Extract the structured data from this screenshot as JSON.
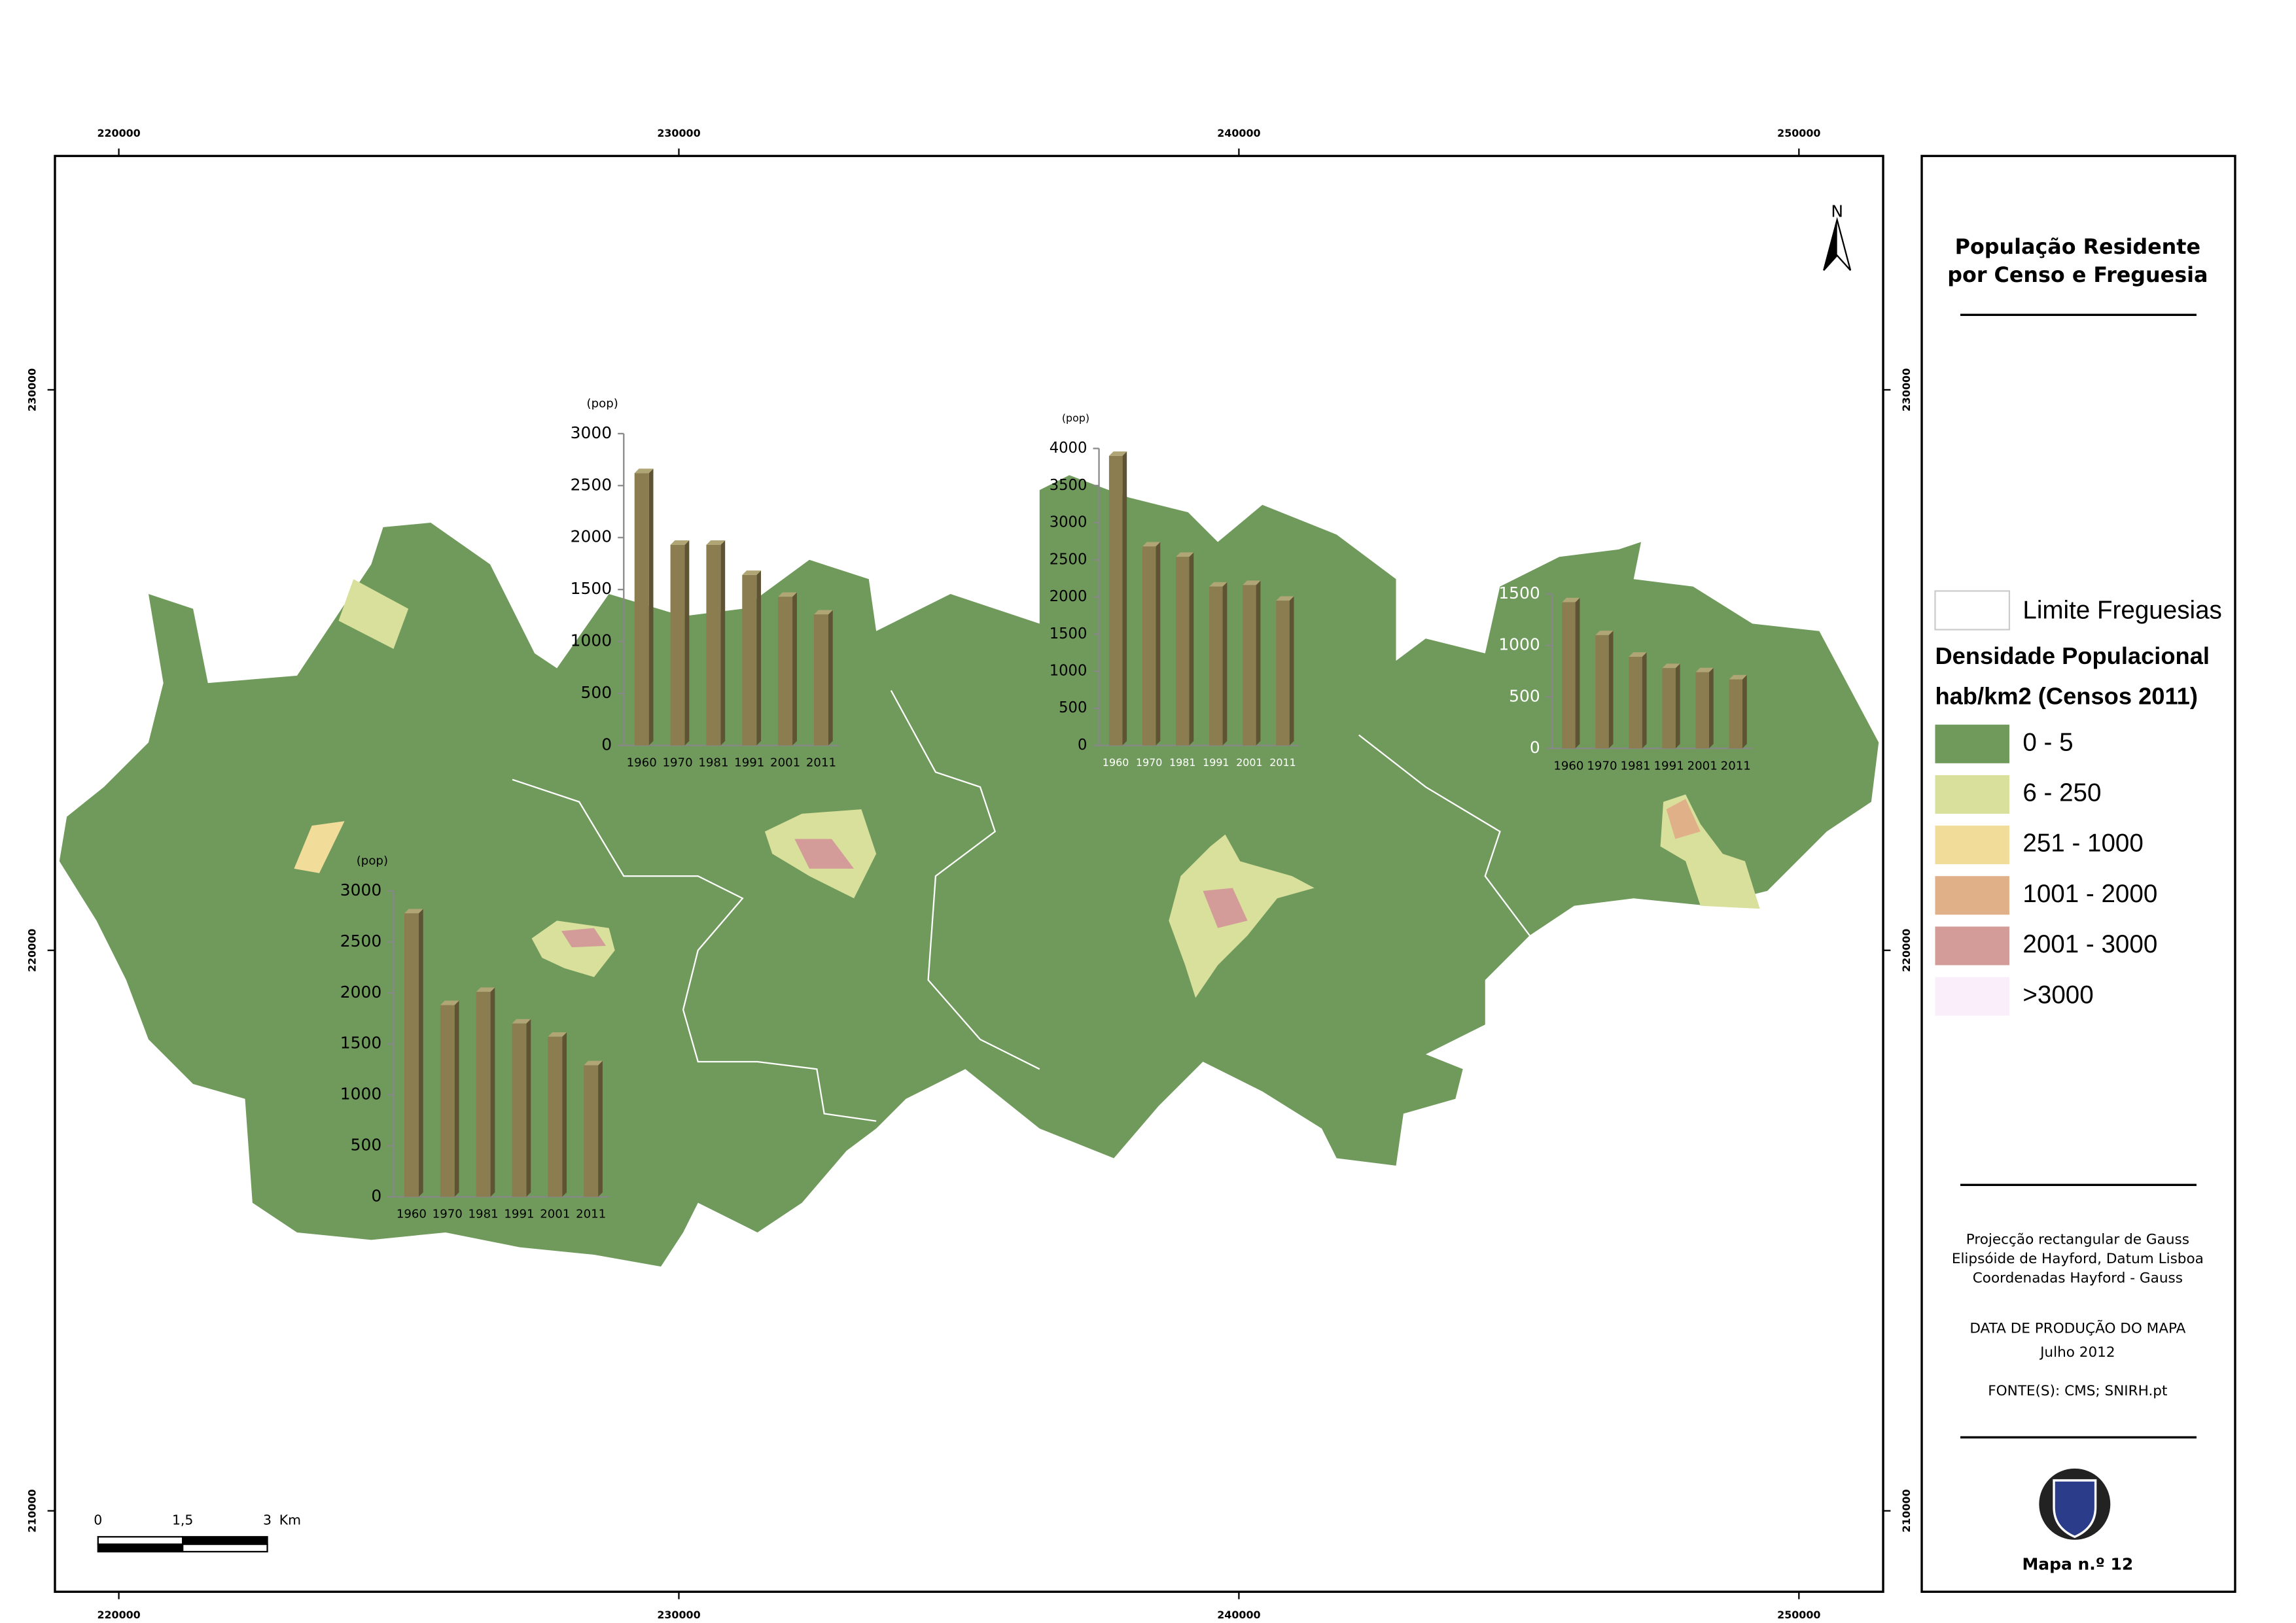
{
  "map": {
    "xticks": [
      220000,
      230000,
      240000,
      250000
    ],
    "yticks": [
      230000,
      220000,
      210000
    ],
    "north": "N",
    "scale_bar": {
      "labels": [
        "0",
        "1,5",
        "3"
      ],
      "unit": "Km"
    },
    "charts": [
      {
        "type": "bar",
        "unit": "(pop)",
        "categories": [
          "1960",
          "1970",
          "1981",
          "1991",
          "2001",
          "2011"
        ],
        "values": [
          2620,
          1930,
          1930,
          1640,
          1430,
          1260
        ],
        "ylim": [
          0,
          3000
        ],
        "yticks": [
          0,
          500,
          1000,
          1500,
          2000,
          2500,
          3000
        ],
        "color": "#8b7d4f"
      },
      {
        "type": "bar",
        "unit": "(pop)",
        "categories": [
          "1960",
          "1970",
          "1981",
          "1991",
          "2001",
          "2011"
        ],
        "values": [
          3900,
          2680,
          2540,
          2140,
          2160,
          1950
        ],
        "ylim": [
          0,
          4000
        ],
        "yticks": [
          0,
          500,
          1000,
          1500,
          2000,
          2500,
          3000,
          3500,
          4000
        ],
        "color": "#8b7d4f"
      },
      {
        "type": "bar",
        "categories": [
          "1960",
          "1970",
          "1981",
          "1991",
          "2001",
          "2011"
        ],
        "values": [
          1420,
          1100,
          890,
          780,
          740,
          670
        ],
        "ylim": [
          0,
          1500
        ],
        "yticks": [
          0,
          500,
          1000,
          1500
        ],
        "color": "#8b7d4f"
      },
      {
        "type": "bar",
        "unit": "(pop)",
        "categories": [
          "1960",
          "1970",
          "1981",
          "1991",
          "2001",
          "2011"
        ],
        "values": [
          2780,
          1880,
          2010,
          1700,
          1570,
          1290
        ],
        "ylim": [
          0,
          3000
        ],
        "yticks": [
          0,
          500,
          1000,
          1500,
          2000,
          2500,
          3000
        ],
        "color": "#8b7d4f"
      }
    ]
  },
  "panel": {
    "title": [
      "População Residente",
      "por Censo e Freguesia"
    ],
    "legend": {
      "boundary": "Limite Freguesias",
      "heading": [
        "Densidade Populacional",
        "hab/km2 (Censos 2011)"
      ],
      "classes": [
        {
          "label": "0 - 5",
          "color": "#6f9a5b"
        },
        {
          "label": "6 - 250",
          "color": "#d9e09c"
        },
        {
          "label": "251 - 1000",
          "color": "#f2dc9a"
        },
        {
          "label": "1001 - 2000",
          "color": "#e0b189"
        },
        {
          "label": "2001 - 3000",
          "color": "#d39c99"
        },
        {
          "label": ">3000",
          "color": "#fbeefb"
        }
      ]
    },
    "info": [
      "Projecção rectangular de Gauss",
      "Elipsóide de Hayford, Datum Lisboa",
      "Coordenadas Hayford - Gauss"
    ],
    "date_heading": "DATA DE PRODUÇÃO DO MAPA",
    "date": "Julho 2012",
    "source": "FONTE(S): CMS; SNIRH.pt",
    "map_number": "Mapa n.º 12"
  }
}
